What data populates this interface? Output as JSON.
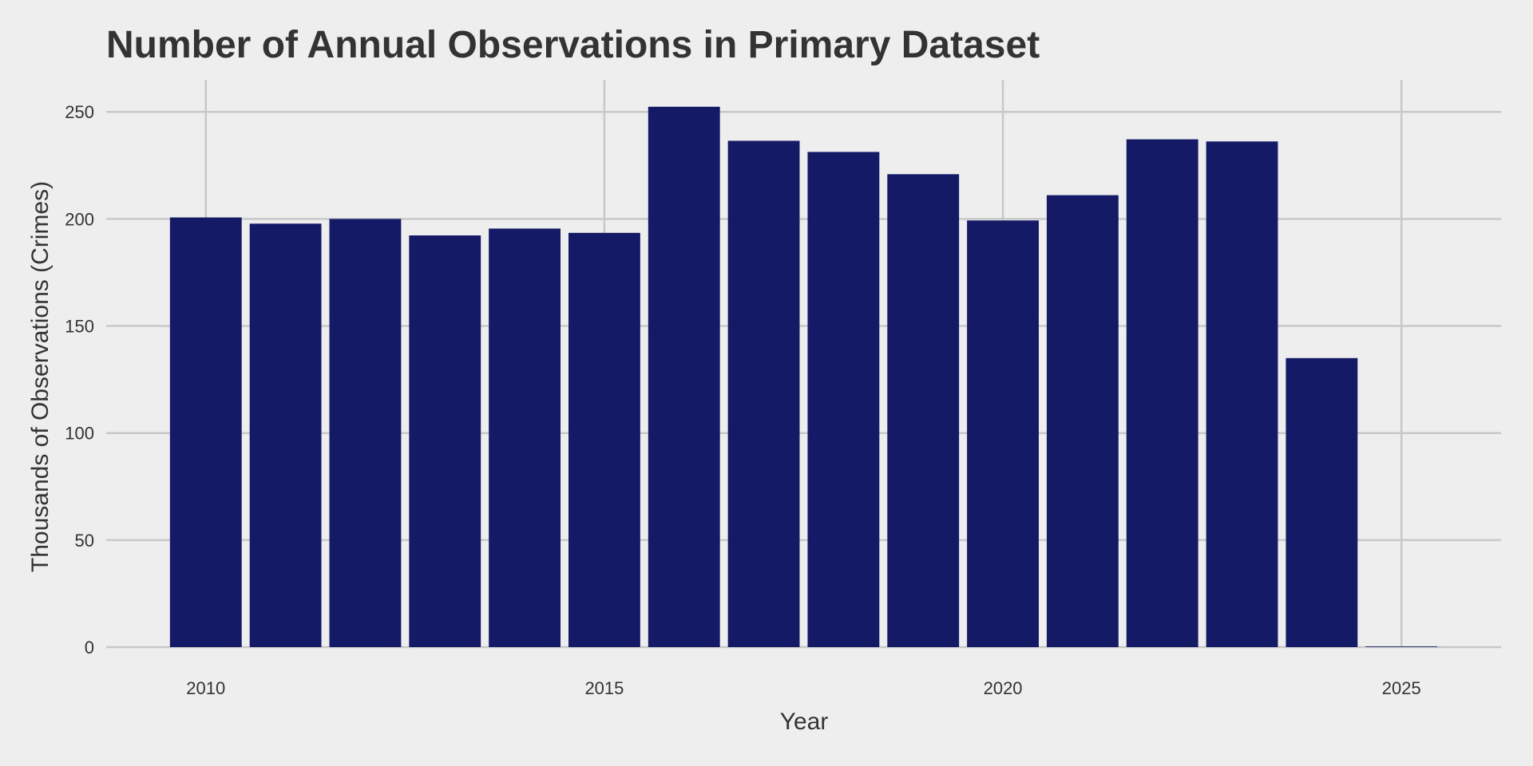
{
  "chart_data": {
    "type": "bar",
    "title": "Number of Annual Observations in Primary Dataset",
    "xlabel": "Year",
    "ylabel": "Thousands of Observations (Crimes)",
    "x": [
      2010,
      2011,
      2012,
      2013,
      2014,
      2015,
      2016,
      2017,
      2018,
      2019,
      2020,
      2021,
      2022,
      2023,
      2024,
      2025
    ],
    "values": [
      200.7,
      197.8,
      200.0,
      192.3,
      195.5,
      193.5,
      252.4,
      236.5,
      231.3,
      220.9,
      199.3,
      211.1,
      237.2,
      236.2,
      135.0,
      0.3
    ],
    "xticks": [
      2010,
      2015,
      2020,
      2025
    ],
    "yticks": [
      0,
      50,
      100,
      150,
      200,
      250
    ],
    "xlim": [
      2008.75,
      2026.25
    ],
    "ylim": [
      0,
      265
    ],
    "grid": true,
    "bar_color": "#141a66",
    "background_color": "#eeeeee",
    "grid_color": "#c8c8c8"
  }
}
